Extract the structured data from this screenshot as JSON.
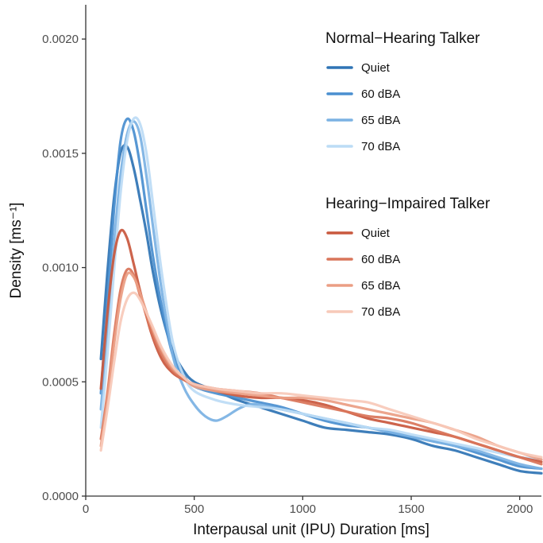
{
  "chart_data": {
    "type": "line",
    "title": "",
    "xlabel": "Interpausal unit (IPU) Duration [ms]",
    "ylabel": "Density [ms⁻¹]",
    "xlim": [
      0,
      2100
    ],
    "ylim": [
      0,
      0.00215
    ],
    "x_ticks": [
      0,
      500,
      1000,
      1500,
      2000
    ],
    "x_tick_labels": [
      "0",
      "500",
      "1000",
      "1500",
      "2000"
    ],
    "y_ticks": [
      0,
      0.0005,
      0.001,
      0.0015,
      0.002
    ],
    "y_tick_labels": [
      "0.0000",
      "0.0005",
      "0.0010",
      "0.0015",
      "0.0020"
    ],
    "grid": false,
    "legend_position": "top-right",
    "legend": [
      {
        "title": "Normal−Hearing Talker",
        "entries": [
          {
            "label": "Quiet",
            "color": "#2f74b5"
          },
          {
            "label": "60 dBA",
            "color": "#4a8fd0"
          },
          {
            "label": "65 dBA",
            "color": "#7bb2e3"
          },
          {
            "label": "70 dBA",
            "color": "#bcdcf5"
          }
        ]
      },
      {
        "title": "Hearing−Impaired Talker",
        "entries": [
          {
            "label": "Quiet",
            "color": "#c9583e"
          },
          {
            "label": "60 dBA",
            "color": "#d9755a"
          },
          {
            "label": "65 dBA",
            "color": "#eb9e84"
          },
          {
            "label": "70 dBA",
            "color": "#f7c9b9"
          }
        ]
      }
    ],
    "series": [
      {
        "name": "Normal−Hearing Talker – Quiet",
        "color": "#2f74b5",
        "x": [
          70,
          100,
          130,
          160,
          190,
          220,
          250,
          280,
          310,
          350,
          400,
          450,
          500,
          600,
          700,
          800,
          900,
          1000,
          1100,
          1200,
          1300,
          1400,
          1500,
          1600,
          1700,
          1800,
          1900,
          2000,
          2100
        ],
        "y": [
          0.0006,
          0.00098,
          0.0013,
          0.0015,
          0.00153,
          0.00144,
          0.0013,
          0.00115,
          0.00098,
          0.0008,
          0.00064,
          0.00055,
          0.0005,
          0.00046,
          0.00042,
          0.00039,
          0.00036,
          0.00033,
          0.0003,
          0.00029,
          0.00028,
          0.00027,
          0.00025,
          0.00022,
          0.0002,
          0.00017,
          0.00014,
          0.00011,
          0.0001
        ]
      },
      {
        "name": "Normal−Hearing Talker – 60 dBA",
        "color": "#4a8fd0",
        "x": [
          70,
          100,
          130,
          160,
          190,
          220,
          250,
          280,
          310,
          350,
          400,
          450,
          500,
          600,
          700,
          800,
          900,
          1000,
          1100,
          1200,
          1300,
          1400,
          1500,
          1600,
          1700,
          1800,
          1900,
          2000,
          2100
        ],
        "y": [
          0.00045,
          0.00085,
          0.00125,
          0.00155,
          0.00165,
          0.0016,
          0.00145,
          0.00125,
          0.00105,
          0.00083,
          0.00062,
          0.00053,
          0.00048,
          0.00045,
          0.00043,
          0.00041,
          0.00039,
          0.00036,
          0.00033,
          0.00031,
          0.0003,
          0.00028,
          0.00026,
          0.00024,
          0.00022,
          0.00019,
          0.00016,
          0.00013,
          0.00012
        ]
      },
      {
        "name": "Normal−Hearing Talker – 65 dBA",
        "color": "#7bb2e3",
        "x": [
          70,
          100,
          130,
          160,
          190,
          220,
          250,
          280,
          310,
          350,
          400,
          450,
          500,
          550,
          600,
          650,
          700,
          750,
          800,
          900,
          1000,
          1100,
          1200,
          1300,
          1400,
          1500,
          1600,
          1700,
          1800,
          1900,
          2000,
          2100
        ],
        "y": [
          0.00038,
          0.00072,
          0.0011,
          0.0014,
          0.00158,
          0.00164,
          0.00158,
          0.0014,
          0.00118,
          0.0009,
          0.00062,
          0.00048,
          0.0004,
          0.00035,
          0.00033,
          0.00035,
          0.00038,
          0.0004,
          0.0004,
          0.00038,
          0.00036,
          0.00034,
          0.00032,
          0.0003,
          0.00028,
          0.00026,
          0.00024,
          0.00022,
          0.0002,
          0.00017,
          0.00014,
          0.00012
        ]
      },
      {
        "name": "Normal−Hearing Talker – 70 dBA",
        "color": "#bcdcf5",
        "x": [
          70,
          100,
          130,
          160,
          190,
          220,
          250,
          280,
          310,
          350,
          400,
          450,
          500,
          600,
          700,
          800,
          900,
          1000,
          1100,
          1200,
          1300,
          1400,
          1500,
          1600,
          1700,
          1800,
          1900,
          2000,
          2100
        ],
        "y": [
          0.0003,
          0.00062,
          0.00098,
          0.00132,
          0.00155,
          0.00165,
          0.00163,
          0.0015,
          0.00128,
          0.00098,
          0.00068,
          0.00053,
          0.00046,
          0.00042,
          0.0004,
          0.00039,
          0.00038,
          0.00036,
          0.00034,
          0.00032,
          0.0003,
          0.00029,
          0.00027,
          0.00025,
          0.00023,
          0.00021,
          0.00019,
          0.00017,
          0.00016
        ]
      },
      {
        "name": "Hearing−Impaired Talker – Quiet",
        "color": "#c9583e",
        "x": [
          70,
          100,
          130,
          160,
          190,
          220,
          250,
          300,
          350,
          400,
          450,
          500,
          600,
          700,
          800,
          900,
          1000,
          1100,
          1200,
          1300,
          1400,
          1500,
          1600,
          1700,
          1800,
          1900,
          2000,
          2100
        ],
        "y": [
          0.00047,
          0.0008,
          0.00105,
          0.00116,
          0.00113,
          0.00102,
          0.0009,
          0.00072,
          0.0006,
          0.00054,
          0.00051,
          0.00049,
          0.00046,
          0.00044,
          0.00043,
          0.00043,
          0.00042,
          0.0004,
          0.00037,
          0.00034,
          0.00032,
          0.0003,
          0.00028,
          0.00026,
          0.00023,
          0.0002,
          0.00017,
          0.00015
        ]
      },
      {
        "name": "Hearing−Impaired Talker – 60 dBA",
        "color": "#d9755a",
        "x": [
          70,
          100,
          130,
          160,
          190,
          220,
          250,
          300,
          350,
          400,
          450,
          500,
          600,
          700,
          800,
          900,
          1000,
          1100,
          1200,
          1300,
          1400,
          1500,
          1600,
          1700,
          1800,
          1900,
          2000,
          2100
        ],
        "y": [
          0.00025,
          0.00045,
          0.0007,
          0.0009,
          0.00099,
          0.00097,
          0.00088,
          0.00073,
          0.00062,
          0.00055,
          0.00051,
          0.00049,
          0.00047,
          0.00046,
          0.00045,
          0.00043,
          0.00041,
          0.00039,
          0.00037,
          0.00035,
          0.00034,
          0.00032,
          0.00029,
          0.00026,
          0.00023,
          0.0002,
          0.00017,
          0.00014
        ]
      },
      {
        "name": "Hearing−Impaired Talker – 65 dBA",
        "color": "#eb9e84",
        "x": [
          70,
          100,
          130,
          160,
          190,
          220,
          250,
          300,
          350,
          400,
          450,
          500,
          600,
          700,
          800,
          900,
          1000,
          1100,
          1200,
          1300,
          1400,
          1500,
          1600,
          1700,
          1800,
          1900,
          2000,
          2100
        ],
        "y": [
          0.00022,
          0.00042,
          0.00066,
          0.00086,
          0.00097,
          0.00096,
          0.00089,
          0.00075,
          0.00064,
          0.00056,
          0.00052,
          0.00048,
          0.00046,
          0.00045,
          0.00044,
          0.00043,
          0.00043,
          0.00042,
          0.0004,
          0.00038,
          0.00036,
          0.00034,
          0.00032,
          0.00029,
          0.00026,
          0.00022,
          0.00019,
          0.00016
        ]
      },
      {
        "name": "Hearing−Impaired Talker – 70 dBA",
        "color": "#f7c9b9",
        "x": [
          70,
          100,
          130,
          160,
          190,
          220,
          250,
          300,
          350,
          400,
          450,
          500,
          600,
          700,
          800,
          900,
          1000,
          1100,
          1200,
          1300,
          1400,
          1500,
          1600,
          1700,
          1800,
          1900,
          2000,
          2100
        ],
        "y": [
          0.0002,
          0.00038,
          0.00058,
          0.00076,
          0.00086,
          0.00089,
          0.00086,
          0.00076,
          0.00065,
          0.00057,
          0.00052,
          0.00049,
          0.00047,
          0.00046,
          0.00045,
          0.00045,
          0.00044,
          0.00043,
          0.00042,
          0.00041,
          0.00038,
          0.00035,
          0.00032,
          0.00029,
          0.00025,
          0.00022,
          0.00019,
          0.00017
        ]
      }
    ]
  }
}
